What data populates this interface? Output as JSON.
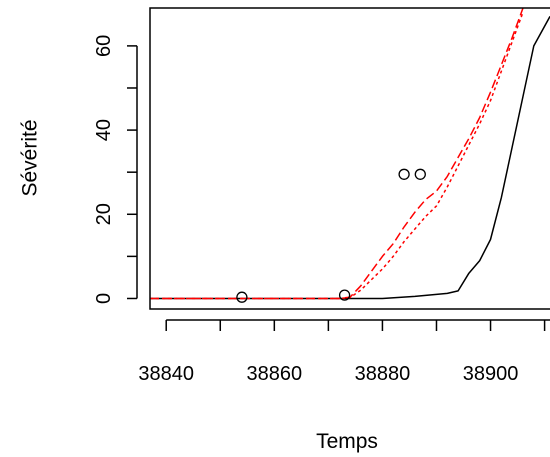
{
  "chart_data": {
    "type": "line",
    "title": "",
    "xlabel": "Temps",
    "ylabel": "Sévérité",
    "xlim": [
      38837,
      38911
    ],
    "ylim": [
      -2.5,
      69
    ],
    "xticks": [
      38840,
      38850,
      38860,
      38870,
      38880,
      38890,
      38900,
      38910
    ],
    "xtick_labels": [
      "38840",
      "38860",
      "38880",
      "38900"
    ],
    "yticks": [
      0,
      10,
      20,
      30,
      40,
      50,
      60
    ],
    "ytick_labels": [
      "0",
      "20",
      "40",
      "60"
    ],
    "grid": false,
    "series": [
      {
        "style": "solid",
        "color": "#000000",
        "x": [
          38837,
          38866,
          38872,
          38880,
          38886,
          38892,
          38894,
          38896,
          38898,
          38900,
          38902,
          38904,
          38906,
          38908,
          38911
        ],
        "y": [
          0,
          0,
          0,
          0,
          0.5,
          1.2,
          1.8,
          6,
          9,
          14,
          24,
          36,
          48,
          60,
          67
        ]
      },
      {
        "style": "dashed",
        "color": "#ff0000",
        "x": [
          38837,
          38872,
          38874,
          38876,
          38878,
          38880,
          38882,
          38884,
          38886,
          38888,
          38890,
          38892,
          38894,
          38896,
          38898,
          38900,
          38902,
          38904,
          38906
        ],
        "y": [
          0,
          0,
          0.3,
          3,
          6.5,
          10,
          13,
          17,
          20.5,
          23.5,
          25.5,
          29,
          33.5,
          38,
          43,
          49,
          55.5,
          62,
          69
        ]
      },
      {
        "style": "dotted",
        "color": "#ff0000",
        "x": [
          38837,
          38872,
          38874,
          38876,
          38878,
          38880,
          38882,
          38884,
          38886,
          38888,
          38890,
          38892,
          38894,
          38896,
          38898,
          38900,
          38902,
          38904,
          38906
        ],
        "y": [
          0,
          0,
          0.2,
          2,
          4.5,
          7,
          10,
          13.5,
          16.5,
          19.5,
          22,
          26.5,
          31.5,
          36.5,
          41.5,
          47,
          54,
          61,
          68
        ]
      }
    ],
    "points": {
      "marker": "circle-open",
      "x": [
        38854,
        38873,
        38884,
        38887
      ],
      "y": [
        0.3,
        0.8,
        29.5,
        29.5
      ]
    }
  }
}
